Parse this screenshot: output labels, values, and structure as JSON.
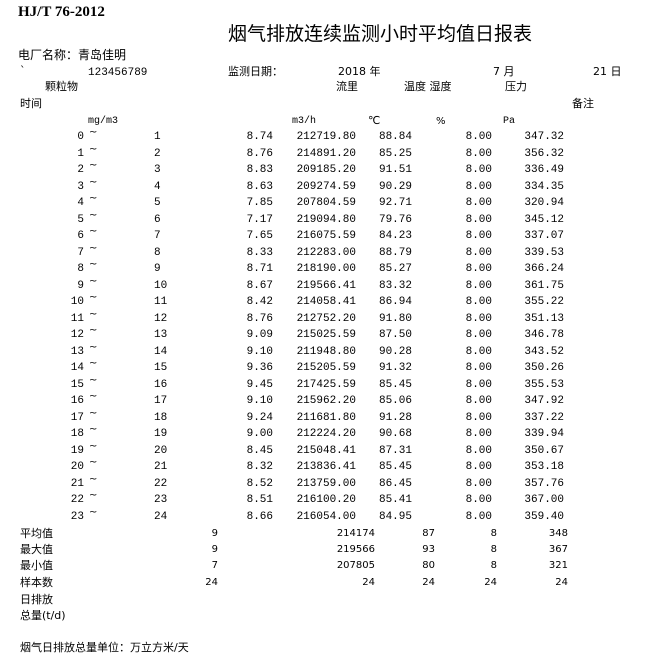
{
  "header": {
    "standard": "HJ/T 76-2012",
    "title": "烟气排放连续监测小时平均值日报表",
    "plant_label": "电厂名称：青岛佳明",
    "backtick": "`",
    "plant_code": "123456789",
    "date_label": "监测日期：",
    "year": "2018 年",
    "month": "7 月",
    "day": "21 日"
  },
  "columns": {
    "particulate": "颗粒物",
    "flow": "流里",
    "temp_humidity": "温度 湿度",
    "pressure": "压力",
    "time": "时间",
    "remark": "备注",
    "unit_particulate": "mg/m3",
    "unit_flow": "m3/h",
    "unit_temp": "℃",
    "unit_humidity": "%",
    "unit_pressure": "Pa"
  },
  "separator": "~",
  "rows": [
    {
      "start": "0",
      "end": "1",
      "pm": "8.74",
      "flow": "212719.80",
      "temp": "88.84",
      "hum": "8.00",
      "press": "347.32"
    },
    {
      "start": "1",
      "end": "2",
      "pm": "8.76",
      "flow": "214891.20",
      "temp": "85.25",
      "hum": "8.00",
      "press": "356.32"
    },
    {
      "start": "2",
      "end": "3",
      "pm": "8.83",
      "flow": "209185.20",
      "temp": "91.51",
      "hum": "8.00",
      "press": "336.49"
    },
    {
      "start": "3",
      "end": "4",
      "pm": "8.63",
      "flow": "209274.59",
      "temp": "90.29",
      "hum": "8.00",
      "press": "334.35"
    },
    {
      "start": "4",
      "end": "5",
      "pm": "7.85",
      "flow": "207804.59",
      "temp": "92.71",
      "hum": "8.00",
      "press": "320.94"
    },
    {
      "start": "5",
      "end": "6",
      "pm": "7.17",
      "flow": "219094.80",
      "temp": "79.76",
      "hum": "8.00",
      "press": "345.12"
    },
    {
      "start": "6",
      "end": "7",
      "pm": "7.65",
      "flow": "216075.59",
      "temp": "84.23",
      "hum": "8.00",
      "press": "337.07"
    },
    {
      "start": "7",
      "end": "8",
      "pm": "8.33",
      "flow": "212283.00",
      "temp": "88.79",
      "hum": "8.00",
      "press": "339.53"
    },
    {
      "start": "8",
      "end": "9",
      "pm": "8.71",
      "flow": "218190.00",
      "temp": "85.27",
      "hum": "8.00",
      "press": "366.24"
    },
    {
      "start": "9",
      "end": "10",
      "pm": "8.67",
      "flow": "219566.41",
      "temp": "83.32",
      "hum": "8.00",
      "press": "361.75"
    },
    {
      "start": "10",
      "end": "11",
      "pm": "8.42",
      "flow": "214058.41",
      "temp": "86.94",
      "hum": "8.00",
      "press": "355.22"
    },
    {
      "start": "11",
      "end": "12",
      "pm": "8.76",
      "flow": "212752.20",
      "temp": "91.80",
      "hum": "8.00",
      "press": "351.13"
    },
    {
      "start": "12",
      "end": "13",
      "pm": "9.09",
      "flow": "215025.59",
      "temp": "87.50",
      "hum": "8.00",
      "press": "346.78"
    },
    {
      "start": "13",
      "end": "14",
      "pm": "9.10",
      "flow": "211948.80",
      "temp": "90.28",
      "hum": "8.00",
      "press": "343.52"
    },
    {
      "start": "14",
      "end": "15",
      "pm": "9.36",
      "flow": "215205.59",
      "temp": "91.32",
      "hum": "8.00",
      "press": "350.26"
    },
    {
      "start": "15",
      "end": "16",
      "pm": "9.45",
      "flow": "217425.59",
      "temp": "85.45",
      "hum": "8.00",
      "press": "355.53"
    },
    {
      "start": "16",
      "end": "17",
      "pm": "9.10",
      "flow": "215962.20",
      "temp": "85.06",
      "hum": "8.00",
      "press": "347.92"
    },
    {
      "start": "17",
      "end": "18",
      "pm": "9.24",
      "flow": "211681.80",
      "temp": "91.28",
      "hum": "8.00",
      "press": "337.22"
    },
    {
      "start": "18",
      "end": "19",
      "pm": "9.00",
      "flow": "212224.20",
      "temp": "90.68",
      "hum": "8.00",
      "press": "339.94"
    },
    {
      "start": "19",
      "end": "20",
      "pm": "8.45",
      "flow": "215048.41",
      "temp": "87.31",
      "hum": "8.00",
      "press": "350.67"
    },
    {
      "start": "20",
      "end": "21",
      "pm": "8.32",
      "flow": "213836.41",
      "temp": "85.45",
      "hum": "8.00",
      "press": "353.18"
    },
    {
      "start": "21",
      "end": "22",
      "pm": "8.52",
      "flow": "213759.00",
      "temp": "86.45",
      "hum": "8.00",
      "press": "357.76"
    },
    {
      "start": "22",
      "end": "23",
      "pm": "8.51",
      "flow": "216100.20",
      "temp": "85.41",
      "hum": "8.00",
      "press": "367.00"
    },
    {
      "start": "23",
      "end": "24",
      "pm": "8.66",
      "flow": "216054.00",
      "temp": "84.95",
      "hum": "8.00",
      "press": "359.40"
    }
  ],
  "summary": [
    {
      "label": "平均值",
      "pm": "9",
      "flow": "214174",
      "temp": "87",
      "hum": "8",
      "press": "348"
    },
    {
      "label": "最大值",
      "pm": "9",
      "flow": "219566",
      "temp": "93",
      "hum": "8",
      "press": "367"
    },
    {
      "label": "最小值",
      "pm": "7",
      "flow": "207805",
      "temp": "80",
      "hum": "8",
      "press": "321"
    },
    {
      "label": "样本数",
      "pm": "24",
      "flow": "24",
      "temp": "24",
      "hum": "24",
      "press": "24"
    }
  ],
  "footer": {
    "daily_emission": "日排放",
    "total": "总量(t/d)",
    "unit_note": "烟气日排放总量单位：万立方米/天"
  }
}
